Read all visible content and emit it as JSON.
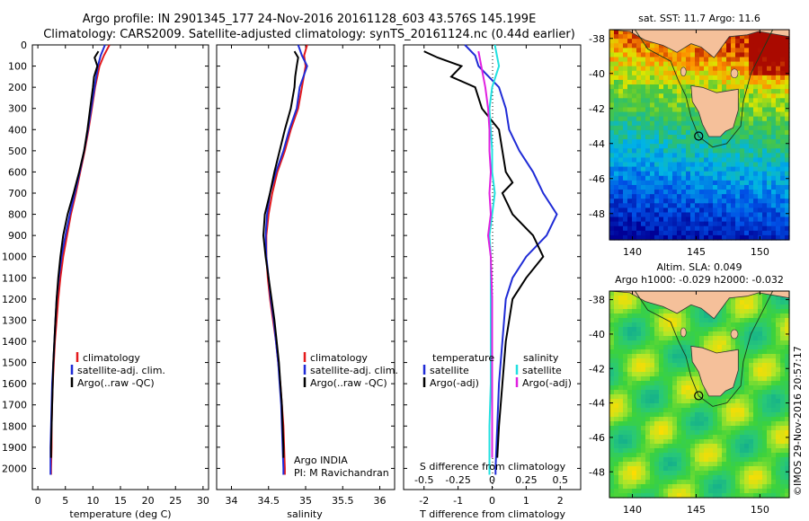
{
  "header": {
    "line1": "Argo profile: IN 2901345_177 24-Nov-2016 20161128_603 43.576S 145.199E",
    "line2": "Climatology: CARS2009. Satellite-adjusted climatology: synTS_20161124.nc (0.44d earlier)"
  },
  "colors": {
    "climatology": "#e41a1c",
    "satellite": "#1f2bd6",
    "argo": "#000000",
    "sat_salinity": "#22e0e0",
    "argo_adj_salinity": "#e020e0",
    "land": "#f5c09a"
  },
  "chart_data": [
    {
      "type": "line",
      "name": "temperature-panel",
      "xlabel": "temperature (deg C)",
      "ylabel": "",
      "xlim": [
        -1,
        31
      ],
      "ylim": [
        2100,
        0
      ],
      "xticks": [
        "0",
        "5",
        "10",
        "15",
        "20",
        "25",
        "30"
      ],
      "yticks": [
        "0",
        "100",
        "200",
        "300",
        "400",
        "500",
        "600",
        "700",
        "800",
        "900",
        "1000",
        "1100",
        "1200",
        "1300",
        "1400",
        "1500",
        "1600",
        "1700",
        "1800",
        "1900",
        "2000"
      ],
      "legend": [
        "climatology",
        "satellite-adj. clim.",
        "Argo(..raw -QC)"
      ],
      "series": [
        {
          "key": "climatology",
          "depth": [
            0,
            50,
            100,
            200,
            300,
            400,
            500,
            600,
            700,
            800,
            900,
            1000,
            1100,
            1200,
            1300,
            1400,
            1500,
            1600,
            1700,
            1800,
            1900,
            2000,
            2030
          ],
          "values": [
            13.0,
            12.0,
            11.2,
            10.4,
            9.8,
            9.2,
            8.5,
            7.7,
            6.9,
            6.0,
            5.3,
            4.6,
            4.1,
            3.7,
            3.4,
            3.1,
            2.9,
            2.7,
            2.6,
            2.5,
            2.5,
            2.4,
            2.4
          ]
        },
        {
          "key": "satellite",
          "depth": [
            0,
            50,
            100,
            200,
            300,
            400,
            500,
            600,
            700,
            800,
            900,
            1000,
            1100,
            1200,
            1300,
            1400,
            1500,
            1600,
            1700,
            1800,
            1900,
            2000,
            2030
          ],
          "values": [
            12.2,
            11.4,
            10.9,
            10.3,
            9.7,
            9.1,
            8.4,
            7.6,
            6.7,
            5.8,
            5.0,
            4.3,
            3.8,
            3.4,
            3.2,
            3.0,
            2.8,
            2.6,
            2.5,
            2.4,
            2.3,
            2.3,
            2.3
          ]
        },
        {
          "key": "argo",
          "depth": [
            30,
            60,
            100,
            150,
            200,
            300,
            400,
            500,
            600,
            700,
            800,
            900,
            1000,
            1100,
            1200,
            1300,
            1400,
            1500,
            1600,
            1700,
            1800,
            1900,
            1950
          ],
          "values": [
            11.0,
            10.3,
            10.8,
            10.2,
            10.0,
            9.5,
            9.0,
            8.4,
            7.5,
            6.5,
            5.4,
            4.6,
            4.1,
            3.7,
            3.4,
            3.2,
            3.0,
            2.8,
            2.7,
            2.6,
            2.5,
            2.4,
            2.4
          ]
        }
      ]
    },
    {
      "type": "line",
      "name": "salinity-panel",
      "xlabel": "salinity",
      "xlim": [
        33.8,
        36.2
      ],
      "ylim": [
        2100,
        0
      ],
      "xticks": [
        "34",
        "34.5",
        "35",
        "35.5",
        "36"
      ],
      "legend": [
        "climatology",
        "satellite-adj. clim.",
        "Argo(..raw -QC)"
      ],
      "annotation": [
        "Argo INDIA",
        "PI: M Ravichandran"
      ],
      "series": [
        {
          "key": "climatology",
          "depth": [
            0,
            50,
            100,
            200,
            300,
            400,
            500,
            600,
            700,
            800,
            900,
            1000,
            1100,
            1200,
            1300,
            1400,
            1500,
            1600,
            1700,
            1800,
            1900,
            2000,
            2030
          ],
          "values": [
            35.02,
            34.98,
            35.0,
            34.95,
            34.9,
            34.8,
            34.72,
            34.62,
            34.55,
            34.5,
            34.47,
            34.47,
            34.49,
            34.52,
            34.56,
            34.6,
            34.63,
            34.66,
            34.68,
            34.7,
            34.71,
            34.72,
            34.72
          ]
        },
        {
          "key": "satellite",
          "depth": [
            0,
            50,
            100,
            200,
            300,
            400,
            500,
            600,
            700,
            800,
            900,
            1000,
            1100,
            1200,
            1300,
            1400,
            1500,
            1600,
            1700,
            1800,
            1900,
            2000,
            2030
          ],
          "values": [
            34.9,
            34.95,
            35.02,
            34.92,
            34.88,
            34.78,
            34.7,
            34.6,
            34.52,
            34.48,
            34.46,
            34.47,
            34.5,
            34.53,
            34.57,
            34.6,
            34.63,
            34.65,
            34.67,
            34.68,
            34.69,
            34.7,
            34.7
          ]
        },
        {
          "key": "argo",
          "depth": [
            30,
            60,
            100,
            150,
            200,
            300,
            400,
            500,
            600,
            700,
            800,
            900,
            1000,
            1100,
            1200,
            1300,
            1400,
            1500,
            1600,
            1700,
            1800,
            1900,
            1950
          ],
          "values": [
            34.85,
            34.9,
            34.88,
            34.86,
            34.85,
            34.8,
            34.72,
            34.65,
            34.58,
            34.52,
            34.45,
            34.43,
            34.46,
            34.5,
            34.54,
            34.58,
            34.61,
            34.64,
            34.66,
            34.68,
            34.69,
            34.7,
            34.7
          ]
        }
      ]
    },
    {
      "type": "line",
      "name": "difference-panel",
      "xlabel": "T difference from climatology",
      "xlabel_top": "S difference from climatology",
      "xlim": [
        -2.6,
        2.6
      ],
      "ylim": [
        2100,
        0
      ],
      "xticks": [
        "-2",
        "-1",
        "0",
        "1",
        "2"
      ],
      "xticks_top": [
        "-0.5",
        "-0.25",
        "0",
        "0.25",
        "0.5"
      ],
      "legend_left_title": "temperature",
      "legend_left": [
        "satellite",
        "Argo(-adj)"
      ],
      "legend_right_title": "salinity",
      "legend_right": [
        "satellite",
        "Argo(-adj)"
      ],
      "series": [
        {
          "key": "t_sat",
          "depth": [
            0,
            50,
            100,
            200,
            300,
            400,
            500,
            600,
            700,
            800,
            900,
            1000,
            1100,
            1200,
            1400,
            1600,
            1800,
            2000,
            2030
          ],
          "values": [
            -0.8,
            -0.5,
            -0.4,
            0.2,
            0.4,
            0.5,
            0.8,
            1.2,
            1.5,
            1.9,
            1.6,
            1.0,
            0.6,
            0.4,
            0.3,
            0.2,
            0.15,
            0.1,
            0.1
          ]
        },
        {
          "key": "t_argo",
          "depth": [
            30,
            60,
            100,
            150,
            200,
            300,
            400,
            500,
            600,
            650,
            700,
            800,
            900,
            1000,
            1100,
            1200,
            1400,
            1600,
            1800,
            1950
          ],
          "values": [
            -2.0,
            -1.6,
            -0.9,
            -1.2,
            -0.5,
            -0.3,
            0.2,
            0.3,
            0.4,
            0.6,
            0.3,
            0.6,
            1.2,
            1.5,
            1.0,
            0.6,
            0.4,
            0.3,
            0.2,
            0.15
          ]
        },
        {
          "key": "s_sat",
          "depth": [
            0,
            100,
            200,
            300,
            400,
            500,
            600,
            700,
            800,
            900,
            1000,
            1200,
            1400,
            1600,
            1800,
            2000,
            2030
          ],
          "values": [
            0.02,
            0.05,
            0.0,
            -0.02,
            -0.01,
            0.0,
            0.0,
            0.02,
            0.0,
            -0.02,
            -0.01,
            -0.01,
            -0.01,
            -0.01,
            -0.02,
            -0.02,
            -0.02
          ]
        },
        {
          "key": "s_argo",
          "depth": [
            30,
            100,
            200,
            300,
            400,
            500,
            600,
            700,
            800,
            900,
            1000,
            1200,
            1400,
            1600,
            1800,
            1950
          ],
          "values": [
            -0.1,
            -0.08,
            -0.05,
            -0.03,
            -0.02,
            -0.02,
            -0.01,
            -0.02,
            -0.01,
            -0.03,
            -0.01,
            0.0,
            0.0,
            0.0,
            0.0,
            0.0
          ]
        }
      ]
    }
  ],
  "maps": {
    "sst": {
      "title": "sat. SST: 11.7  Argo: 11.6",
      "yticks": [
        "-38",
        "-40",
        "-42",
        "-44",
        "-46",
        "-48"
      ],
      "xticks": [
        "140",
        "145",
        "150"
      ],
      "lat_range": [
        -49.5,
        -37.5
      ],
      "lon_range": [
        138.2,
        152.3
      ],
      "argo_pos": [
        145.199,
        -43.576
      ]
    },
    "sla": {
      "title_line1": "Altim. SLA: 0.049",
      "title_line2": "Argo h1000: -0.029 h2000: -0.032",
      "yticks": [
        "-38",
        "-40",
        "-42",
        "-44",
        "-46",
        "-48"
      ],
      "xticks": [
        "140",
        "145",
        "150"
      ],
      "lat_range": [
        -49.5,
        -37.5
      ],
      "lon_range": [
        138.2,
        152.3
      ],
      "argo_pos": [
        145.199,
        -43.576
      ]
    }
  },
  "credit": "©IMOS 29-Nov-2016 20:57:17"
}
